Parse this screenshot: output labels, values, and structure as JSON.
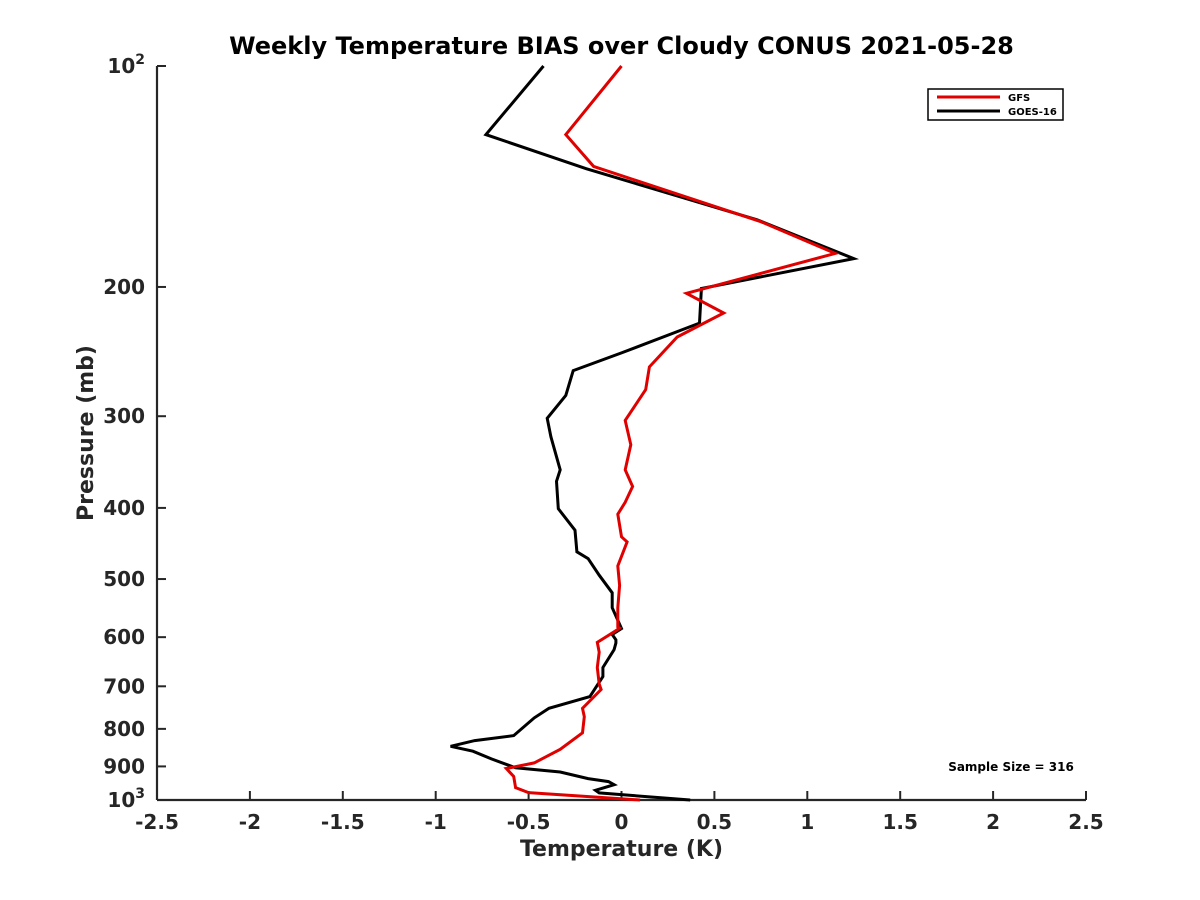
{
  "chart_data": {
    "type": "line",
    "title": "Weekly Temperature BIAS over Cloudy CONUS 2021-05-28",
    "xlabel": "Temperature (K)",
    "ylabel": "Pressure (mb)",
    "xlim": [
      -2.5,
      2.5
    ],
    "ylim": [
      100,
      1000
    ],
    "y_scale": "log",
    "y_direction": "reversed",
    "x_ticks": [
      -2.5,
      -2,
      -1.5,
      -1,
      -0.5,
      0,
      0.5,
      1,
      1.5,
      2,
      2.5
    ],
    "x_tick_labels": [
      "-2.5",
      "-2",
      "-1.5",
      "-1",
      "-0.5",
      "0",
      "0.5",
      "1",
      "1.5",
      "2",
      "2.5"
    ],
    "y_ticks": [
      {
        "value": 100,
        "base": "10",
        "exp": "2"
      },
      {
        "value": 200,
        "label": "200"
      },
      {
        "value": 300,
        "label": "300"
      },
      {
        "value": 400,
        "label": "400"
      },
      {
        "value": 500,
        "label": "500"
      },
      {
        "value": 600,
        "label": "600"
      },
      {
        "value": 700,
        "label": "700"
      },
      {
        "value": 800,
        "label": "800"
      },
      {
        "value": 900,
        "label": "900"
      },
      {
        "value": 1000,
        "base": "10",
        "exp": "3"
      }
    ],
    "grid": false,
    "legend_position": "top-right",
    "annotation": "Sample Size = 316",
    "series": [
      {
        "name": "GFS",
        "color": "#e00000",
        "x": [
          0.0,
          -0.3,
          -0.15,
          0.75,
          1.15,
          0.35,
          0.55,
          0.3,
          0.15,
          0.13,
          0.02,
          0.05,
          0.02,
          0.06,
          0.02,
          -0.02,
          0.0,
          0.03,
          -0.02,
          -0.01,
          -0.02,
          -0.02,
          -0.01,
          -0.03,
          -0.13,
          -0.12,
          -0.13,
          -0.12,
          -0.11,
          -0.21,
          -0.2,
          -0.21,
          -0.33,
          -0.47,
          -0.62,
          -0.58,
          -0.57,
          -0.5,
          0.1
        ],
        "y": [
          100,
          124,
          137,
          163,
          180,
          204,
          217,
          234,
          257,
          276,
          304,
          328,
          355,
          374,
          393,
          408,
          438,
          445,
          480,
          510,
          547,
          581,
          583,
          588,
          610,
          629,
          660,
          695,
          707,
          750,
          770,
          810,
          853,
          890,
          906,
          929,
          962,
          977,
          1000
        ]
      },
      {
        "name": "GOES-16",
        "color": "#000000",
        "x": [
          -0.42,
          -0.73,
          -0.19,
          0.73,
          1.25,
          0.43,
          0.42,
          0.0,
          -0.26,
          -0.3,
          -0.4,
          -0.38,
          -0.33,
          -0.35,
          -0.34,
          -0.25,
          -0.24,
          -0.18,
          -0.12,
          -0.05,
          -0.05,
          0.0,
          -0.05,
          -0.03,
          -0.03,
          -0.04,
          -0.1,
          -0.1,
          -0.17,
          -0.39,
          -0.47,
          -0.58,
          -0.79,
          -0.92,
          -0.8,
          -0.7,
          -0.57,
          -0.33,
          -0.18,
          -0.07,
          -0.04,
          -0.14,
          -0.12,
          0.37
        ],
        "y": [
          100,
          124,
          138,
          162,
          183,
          201,
          224,
          246,
          260,
          281,
          302,
          320,
          355,
          368,
          401,
          429,
          459,
          469,
          494,
          522,
          547,
          584,
          595,
          605,
          611,
          624,
          660,
          679,
          723,
          750,
          773,
          817,
          830,
          845,
          858,
          879,
          904,
          916,
          935,
          944,
          953,
          970,
          978,
          1000
        ]
      }
    ]
  }
}
